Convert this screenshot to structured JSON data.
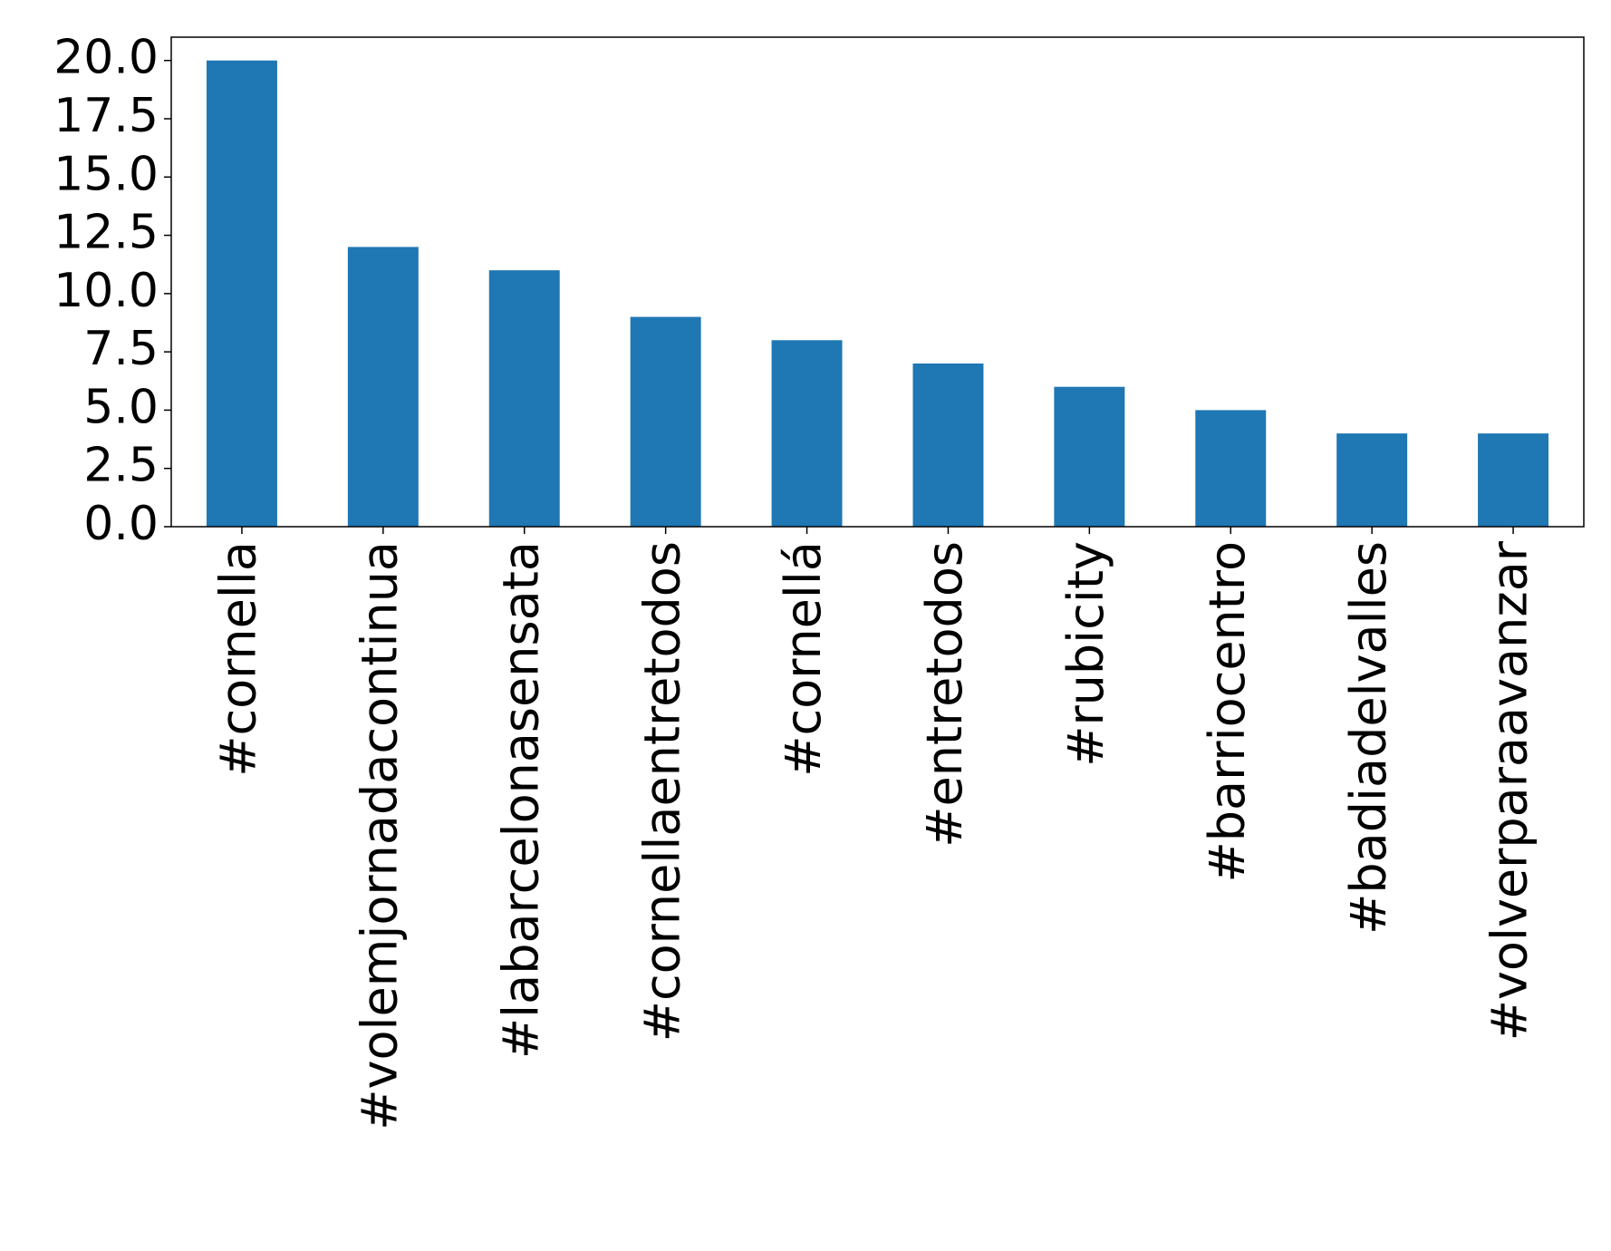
{
  "chart_data": {
    "type": "bar",
    "categories": [
      "#cornella",
      "#volemjornadacontinua",
      "#labarcelonasensata",
      "#cornellaentretodos",
      "#cornellá",
      "#entretodos",
      "#rubicity",
      "#barriocentro",
      "#badiadelvalles",
      "#volverparaavanzar"
    ],
    "values": [
      20,
      12,
      11,
      9,
      8,
      7,
      6,
      5,
      4,
      4
    ],
    "color": "#1f77b4",
    "ylim": [
      0,
      21
    ],
    "yticks": [
      {
        "value": 0,
        "label": "0.0"
      },
      2.5,
      {
        "value": 5,
        "label": "5.0"
      },
      7.5,
      {
        "value": 10,
        "label": "10.0"
      },
      12.5,
      {
        "value": 15,
        "label": "15.0"
      },
      17.5,
      {
        "value": 20,
        "label": "20.0"
      }
    ],
    "grid": false
  }
}
